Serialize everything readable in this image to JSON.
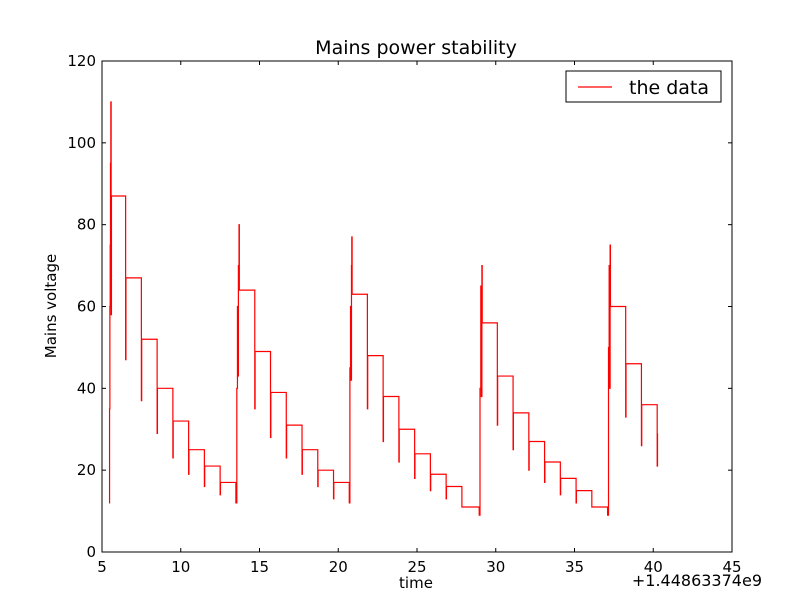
{
  "chart_data": {
    "type": "line",
    "title": "Mains power stability",
    "xlabel": "time",
    "ylabel": "Mains voltage",
    "x_offset_label": "+1.44863374e9",
    "xlim": [
      5,
      45
    ],
    "ylim": [
      0,
      120
    ],
    "xticks": [
      5,
      10,
      15,
      20,
      25,
      30,
      35,
      40,
      45
    ],
    "yticks": [
      0,
      20,
      40,
      60,
      80,
      100,
      120
    ],
    "grid": false,
    "legend": "top-right",
    "series": [
      {
        "name": "the data",
        "color": "#ff0000",
        "step": true,
        "points": [
          [
            5.45,
            12
          ],
          [
            5.48,
            35
          ],
          [
            5.5,
            60
          ],
          [
            5.52,
            75
          ],
          [
            5.54,
            95
          ],
          [
            5.56,
            110
          ],
          [
            5.58,
            58
          ],
          [
            5.6,
            87
          ],
          [
            6.5,
            87
          ],
          [
            6.5,
            47
          ],
          [
            6.52,
            67
          ],
          [
            7.5,
            67
          ],
          [
            7.5,
            37
          ],
          [
            7.52,
            52
          ],
          [
            8.5,
            52
          ],
          [
            8.5,
            29
          ],
          [
            8.52,
            40
          ],
          [
            9.5,
            40
          ],
          [
            9.5,
            23
          ],
          [
            9.52,
            32
          ],
          [
            10.5,
            32
          ],
          [
            10.5,
            19
          ],
          [
            10.52,
            25
          ],
          [
            11.5,
            25
          ],
          [
            11.5,
            16
          ],
          [
            11.52,
            21
          ],
          [
            12.5,
            21
          ],
          [
            12.5,
            14
          ],
          [
            12.52,
            17
          ],
          [
            13.5,
            17
          ],
          [
            13.5,
            12
          ],
          [
            13.56,
            40
          ],
          [
            13.6,
            60
          ],
          [
            13.62,
            43
          ],
          [
            13.66,
            70
          ],
          [
            13.7,
            80
          ],
          [
            13.72,
            64
          ],
          [
            14.7,
            64
          ],
          [
            14.7,
            35
          ],
          [
            14.72,
            49
          ],
          [
            15.7,
            49
          ],
          [
            15.7,
            28
          ],
          [
            15.72,
            39
          ],
          [
            16.7,
            39
          ],
          [
            16.7,
            23
          ],
          [
            16.72,
            31
          ],
          [
            17.7,
            31
          ],
          [
            17.7,
            19
          ],
          [
            17.72,
            25
          ],
          [
            18.7,
            25
          ],
          [
            18.7,
            16
          ],
          [
            18.72,
            20
          ],
          [
            19.7,
            20
          ],
          [
            19.7,
            13
          ],
          [
            19.72,
            17
          ],
          [
            20.7,
            17
          ],
          [
            20.7,
            12
          ],
          [
            20.74,
            45
          ],
          [
            20.78,
            60
          ],
          [
            20.8,
            42
          ],
          [
            20.84,
            70
          ],
          [
            20.86,
            77
          ],
          [
            20.88,
            63
          ],
          [
            21.85,
            63
          ],
          [
            21.85,
            35
          ],
          [
            21.87,
            48
          ],
          [
            22.85,
            48
          ],
          [
            22.85,
            27
          ],
          [
            22.87,
            38
          ],
          [
            23.85,
            38
          ],
          [
            23.85,
            22
          ],
          [
            23.87,
            30
          ],
          [
            24.85,
            30
          ],
          [
            24.85,
            18
          ],
          [
            24.87,
            24
          ],
          [
            25.85,
            24
          ],
          [
            25.85,
            15
          ],
          [
            25.87,
            19
          ],
          [
            26.85,
            19
          ],
          [
            26.85,
            13
          ],
          [
            26.87,
            16
          ],
          [
            27.85,
            16
          ],
          [
            27.85,
            11
          ],
          [
            28.95,
            11
          ],
          [
            28.95,
            9
          ],
          [
            29.0,
            40
          ],
          [
            29.05,
            65
          ],
          [
            29.08,
            38
          ],
          [
            29.12,
            70
          ],
          [
            29.14,
            56
          ],
          [
            30.1,
            56
          ],
          [
            30.1,
            31
          ],
          [
            30.12,
            43
          ],
          [
            31.1,
            43
          ],
          [
            31.1,
            25
          ],
          [
            31.12,
            34
          ],
          [
            32.1,
            34
          ],
          [
            32.1,
            20
          ],
          [
            32.12,
            27
          ],
          [
            33.1,
            27
          ],
          [
            33.1,
            17
          ],
          [
            33.12,
            22
          ],
          [
            34.1,
            22
          ],
          [
            34.1,
            14
          ],
          [
            34.12,
            18
          ],
          [
            35.1,
            18
          ],
          [
            35.1,
            12
          ],
          [
            35.12,
            15
          ],
          [
            36.1,
            15
          ],
          [
            36.1,
            11
          ],
          [
            37.1,
            11
          ],
          [
            37.1,
            9
          ],
          [
            37.16,
            50
          ],
          [
            37.2,
            70
          ],
          [
            37.22,
            40
          ],
          [
            37.26,
            75
          ],
          [
            37.28,
            60
          ],
          [
            38.25,
            60
          ],
          [
            38.25,
            33
          ],
          [
            38.27,
            46
          ],
          [
            39.25,
            46
          ],
          [
            39.25,
            26
          ],
          [
            39.27,
            36
          ],
          [
            40.25,
            36
          ],
          [
            40.25,
            21
          ],
          [
            40.27,
            29
          ]
        ]
      }
    ]
  }
}
